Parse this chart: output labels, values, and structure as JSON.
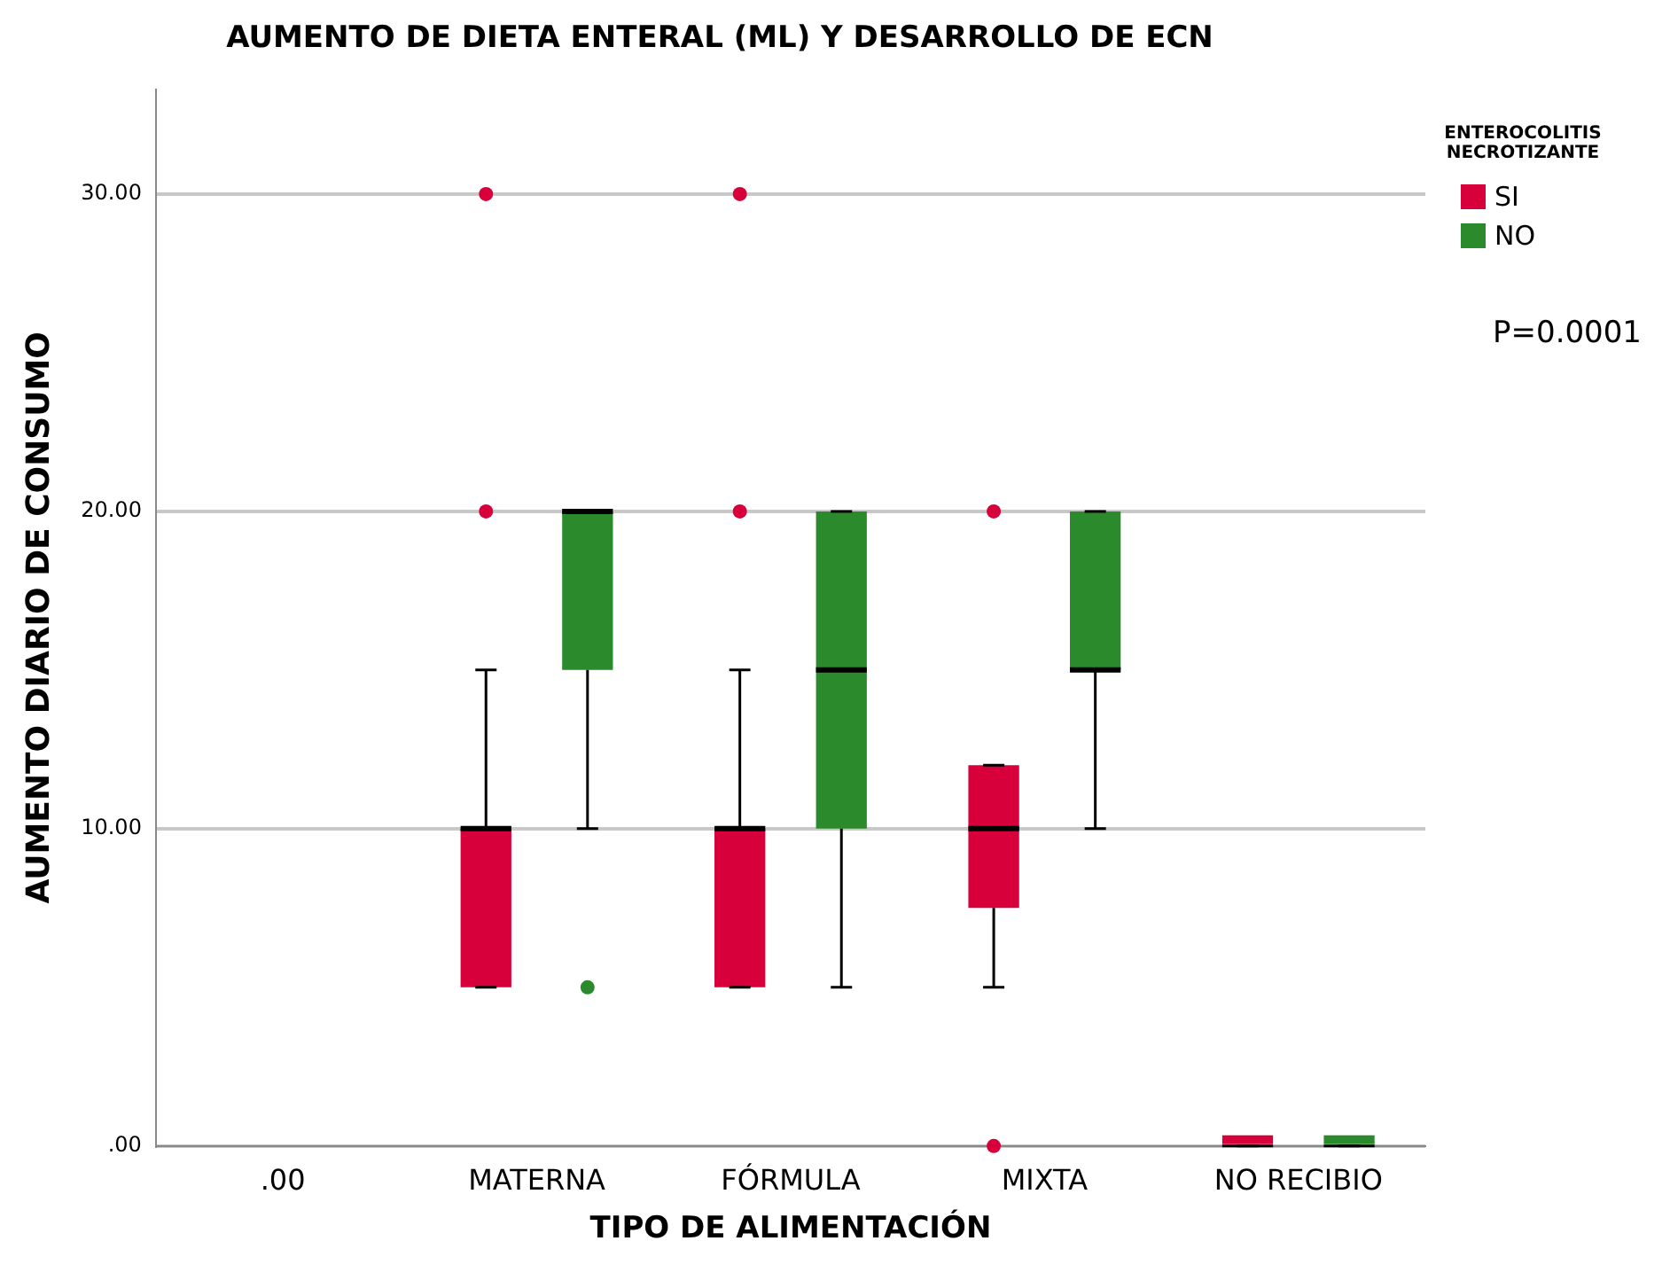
{
  "chart_data": {
    "type": "box",
    "title": "AUMENTO DE DIETA ENTERAL (ML) Y DESARROLLO DE ECN",
    "xlabel": "TIPO DE ALIMENTACIÓN",
    "ylabel": "AUMENTO DIARIO DE CONSUMO",
    "legend_title": "ENTEROCOLITIS NECROTIZANTE",
    "annotations": [
      "P=0.0001"
    ],
    "categories": [
      ".00",
      "MATERNA",
      "FÓRMULA",
      "MIXTA",
      "NO RECIBIO"
    ],
    "series": [
      {
        "name": "SI",
        "color": "#d8003a",
        "boxes": [
          null,
          {
            "low": 5,
            "q1": 5,
            "median": 10,
            "q3": 10,
            "high": 15,
            "outliers": [
              20,
              30
            ]
          },
          {
            "low": 5,
            "q1": 5,
            "median": 10,
            "q3": 10,
            "high": 15,
            "outliers": [
              20,
              30
            ]
          },
          {
            "low": 5,
            "q1": 7.5,
            "median": 10,
            "q3": 12,
            "high": 12,
            "outliers": [
              20,
              0
            ]
          },
          {
            "low": 0,
            "q1": 0,
            "median": 0,
            "q3": 0,
            "high": 0
          }
        ]
      },
      {
        "name": "NO",
        "color": "#2b8a2b",
        "boxes": [
          null,
          {
            "low": 10,
            "q1": 15,
            "median": 20,
            "q3": 20,
            "high": 20,
            "outliers": [
              5
            ]
          },
          {
            "low": 5,
            "q1": 10,
            "median": 15,
            "q3": 20,
            "high": 20
          },
          {
            "low": 10,
            "q1": 15,
            "median": 15,
            "q3": 20,
            "high": 20
          },
          {
            "low": 0,
            "q1": 0,
            "median": 0,
            "q3": 0,
            "high": 0
          }
        ]
      }
    ],
    "ylim": [
      0,
      33.3
    ],
    "yticks": [
      {
        "value": 0,
        "label": ".00"
      },
      {
        "value": 10,
        "label": "10.00"
      },
      {
        "value": 20,
        "label": "20.00"
      },
      {
        "value": 30,
        "label": "30.00"
      }
    ],
    "grid": "y",
    "legend": "top right"
  }
}
